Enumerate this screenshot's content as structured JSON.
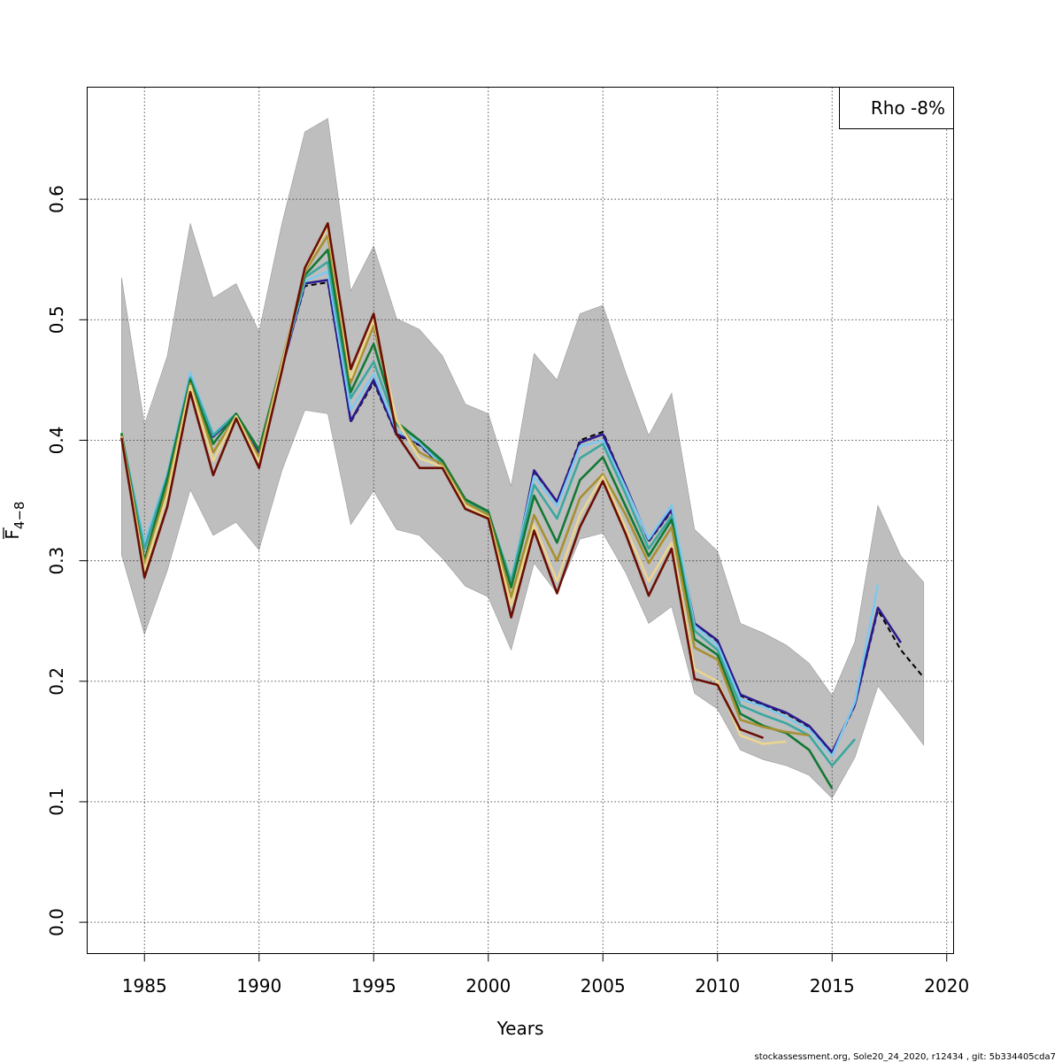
{
  "chart_data": {
    "type": "line",
    "xlabel": "Years",
    "ylabel": "F̄4−8",
    "ylabel_main": "F",
    "ylabel_sub": "4−8",
    "xlim": [
      1982.5,
      2020.3
    ],
    "ylim": [
      -0.026,
      0.693
    ],
    "xticks": [
      1985,
      1990,
      1995,
      2000,
      2005,
      2010,
      2015,
      2020
    ],
    "yticks": [
      0.0,
      0.1,
      0.2,
      0.3,
      0.4,
      0.5,
      0.6
    ],
    "xtick_labels": [
      "1985",
      "1990",
      "1995",
      "2000",
      "2005",
      "2010",
      "2015",
      "2020"
    ],
    "ytick_labels": [
      "0.0",
      "0.1",
      "0.2",
      "0.3",
      "0.4",
      "0.5",
      "0.6"
    ],
    "grid": true,
    "legend_text": "Rho -8%",
    "legend_position": "top-right",
    "footer": "stockassessment.org, Sole20_24_2020, r12434 , git: 5b334405cda7",
    "confidence_band": {
      "x": [
        1984,
        1985,
        1986,
        1987,
        1988,
        1989,
        1990,
        1991,
        1992,
        1993,
        1994,
        1995,
        1996,
        1997,
        1998,
        1999,
        2000,
        2001,
        2002,
        2003,
        2004,
        2005,
        2006,
        2007,
        2008,
        2009,
        2010,
        2011,
        2012,
        2013,
        2014,
        2015,
        2016,
        2017,
        2018,
        2019
      ],
      "upper": [
        0.535,
        0.413,
        0.47,
        0.58,
        0.518,
        0.53,
        0.49,
        0.58,
        0.656,
        0.667,
        0.524,
        0.561,
        0.501,
        0.492,
        0.47,
        0.43,
        0.422,
        0.362,
        0.472,
        0.45,
        0.505,
        0.512,
        0.456,
        0.404,
        0.439,
        0.326,
        0.308,
        0.248,
        0.24,
        0.23,
        0.215,
        0.188,
        0.233,
        0.346,
        0.304,
        0.282
      ],
      "lower": [
        0.305,
        0.239,
        0.292,
        0.359,
        0.321,
        0.332,
        0.309,
        0.375,
        0.425,
        0.422,
        0.33,
        0.358,
        0.326,
        0.321,
        0.302,
        0.279,
        0.27,
        0.226,
        0.298,
        0.273,
        0.318,
        0.323,
        0.29,
        0.248,
        0.262,
        0.19,
        0.177,
        0.143,
        0.135,
        0.13,
        0.122,
        0.103,
        0.137,
        0.196,
        0.172,
        0.147
      ]
    },
    "series": [
      {
        "color": "#000000",
        "dashed": true,
        "x_start": 1984,
        "values": [
          0.404,
          0.31,
          0.37,
          0.452,
          0.403,
          0.421,
          0.39,
          0.46,
          0.528,
          0.531,
          0.415,
          0.448,
          0.404,
          0.396,
          0.378,
          0.347,
          0.337,
          0.28,
          0.374,
          0.349,
          0.4,
          0.407,
          0.362,
          0.316,
          0.341,
          0.248,
          0.233,
          0.188,
          0.18,
          0.173,
          0.162,
          0.14,
          0.18,
          0.259,
          0.226,
          0.203
        ]
      },
      {
        "color": "#2a1a8c",
        "dashed": false,
        "x_start": 1984,
        "values": [
          0.404,
          0.31,
          0.37,
          0.452,
          0.403,
          0.421,
          0.39,
          0.46,
          0.53,
          0.533,
          0.416,
          0.45,
          0.405,
          0.397,
          0.378,
          0.348,
          0.338,
          0.28,
          0.375,
          0.349,
          0.398,
          0.405,
          0.362,
          0.317,
          0.342,
          0.248,
          0.234,
          0.189,
          0.181,
          0.174,
          0.163,
          0.141,
          0.181,
          0.261,
          0.232
        ]
      },
      {
        "color": "#7ec8ee",
        "dashed": false,
        "x_start": 1984,
        "values": [
          0.405,
          0.315,
          0.372,
          0.456,
          0.405,
          0.422,
          0.392,
          0.462,
          0.532,
          0.54,
          0.425,
          0.455,
          0.408,
          0.398,
          0.379,
          0.35,
          0.339,
          0.284,
          0.37,
          0.345,
          0.395,
          0.4,
          0.36,
          0.318,
          0.346,
          0.246,
          0.23,
          0.185,
          0.179,
          0.17,
          0.16,
          0.138,
          0.183,
          0.28
        ]
      },
      {
        "color": "#3aa8a0",
        "dashed": false,
        "x_start": 1984,
        "values": [
          0.405,
          0.31,
          0.37,
          0.452,
          0.404,
          0.422,
          0.392,
          0.463,
          0.535,
          0.548,
          0.435,
          0.465,
          0.413,
          0.4,
          0.381,
          0.35,
          0.34,
          0.283,
          0.363,
          0.335,
          0.385,
          0.397,
          0.355,
          0.31,
          0.337,
          0.242,
          0.226,
          0.18,
          0.172,
          0.165,
          0.155,
          0.13,
          0.152
        ]
      },
      {
        "color": "#137833",
        "dashed": false,
        "x_start": 1984,
        "values": [
          0.406,
          0.3,
          0.368,
          0.45,
          0.397,
          0.422,
          0.392,
          0.465,
          0.537,
          0.558,
          0.44,
          0.48,
          0.415,
          0.4,
          0.383,
          0.351,
          0.341,
          0.278,
          0.354,
          0.315,
          0.367,
          0.386,
          0.345,
          0.304,
          0.334,
          0.235,
          0.222,
          0.173,
          0.163,
          0.157,
          0.143,
          0.111
        ]
      },
      {
        "color": "#a89030",
        "dashed": false,
        "x_start": 1984,
        "values": [
          0.404,
          0.297,
          0.36,
          0.447,
          0.39,
          0.42,
          0.386,
          0.465,
          0.54,
          0.57,
          0.448,
          0.495,
          0.416,
          0.39,
          0.38,
          0.348,
          0.338,
          0.27,
          0.338,
          0.3,
          0.352,
          0.372,
          0.338,
          0.298,
          0.328,
          0.228,
          0.218,
          0.168,
          0.162,
          0.158,
          0.155
        ]
      },
      {
        "color": "#ead590",
        "dashed": false,
        "x_start": 1984,
        "values": [
          0.403,
          0.292,
          0.355,
          0.445,
          0.383,
          0.42,
          0.382,
          0.462,
          0.542,
          0.577,
          0.452,
          0.5,
          0.417,
          0.385,
          0.378,
          0.346,
          0.336,
          0.263,
          0.33,
          0.283,
          0.338,
          0.37,
          0.327,
          0.283,
          0.315,
          0.21,
          0.2,
          0.155,
          0.148,
          0.15
        ]
      },
      {
        "color": "#6a0f05",
        "dashed": false,
        "x_start": 1984,
        "values": [
          0.402,
          0.286,
          0.345,
          0.44,
          0.371,
          0.418,
          0.377,
          0.458,
          0.543,
          0.58,
          0.459,
          0.505,
          0.405,
          0.377,
          0.377,
          0.343,
          0.335,
          0.253,
          0.325,
          0.273,
          0.328,
          0.366,
          0.322,
          0.271,
          0.31,
          0.202,
          0.197,
          0.16,
          0.153
        ]
      }
    ]
  }
}
